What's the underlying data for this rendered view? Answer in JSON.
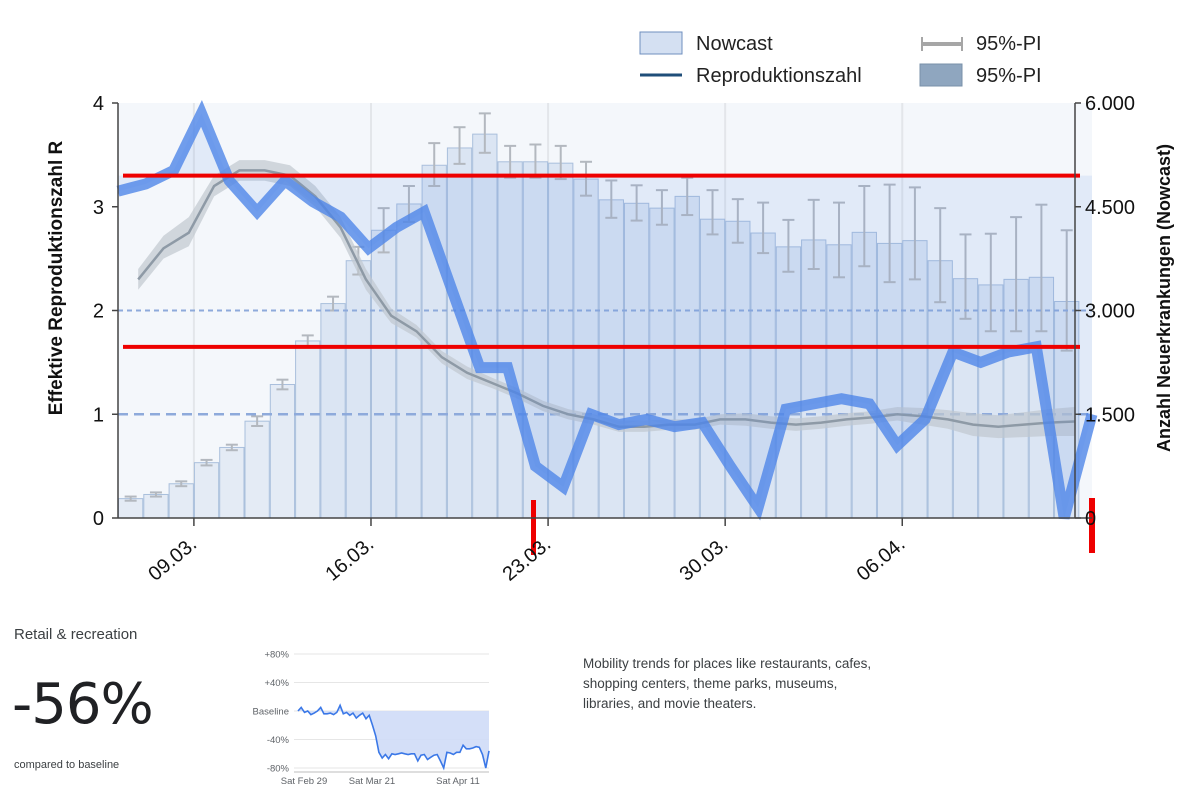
{
  "chart_data": [
    {
      "type": "bar+line",
      "legend": [
        {
          "label": "Nowcast",
          "kind": "bar-swatch",
          "color": "#d4e0f2"
        },
        {
          "label": "Reproduktionszahl",
          "kind": "line",
          "color": "#1f4e79"
        },
        {
          "label": "95%-PI",
          "kind": "errorbar",
          "color": "#a6a6a6"
        },
        {
          "label": "95%-PI",
          "kind": "band-swatch",
          "color": "#8fa6bf"
        }
      ],
      "ylabel_left": "Effektive Reproduktionszahl R",
      "ylabel_right": "Anzahl Neuerkrankungen (Nowcast)",
      "y_left_range": [
        0,
        4
      ],
      "y_left_ticks": [
        "0",
        "1",
        "2",
        "3",
        "4"
      ],
      "y_right_range": [
        0,
        6000
      ],
      "y_right_ticks": [
        "0",
        "1.500",
        "3.000",
        "4.500",
        "6.000"
      ],
      "x_tick_labels": [
        "09.03.",
        "16.03.",
        "23.03.",
        "30.03.",
        "06.04."
      ],
      "nowcast": [
        280,
        340,
        495,
        800,
        1020,
        1400,
        1930,
        2560,
        3100,
        3720,
        4160,
        4540,
        5100,
        5350,
        5550,
        5150,
        5150,
        5130,
        4900,
        4600,
        4550,
        4480,
        4650,
        4320,
        4290,
        4120,
        3920,
        4020,
        3950,
        4130,
        3970,
        4010,
        3720,
        3460,
        3370,
        3450,
        3480,
        3130
      ],
      "nowcast_pi_high": [
        310,
        370,
        530,
        840,
        1060,
        1470,
        2000,
        2640,
        3200,
        3920,
        4480,
        4800,
        5420,
        5650,
        5850,
        5380,
        5400,
        5380,
        5150,
        4880,
        4810,
        4740,
        4920,
        4740,
        4610,
        4560,
        4310,
        4600,
        4560,
        4800,
        4820,
        4780,
        4480,
        4100,
        4110,
        4350,
        4530,
        4160
      ],
      "nowcast_pi_low": [
        250,
        310,
        460,
        760,
        980,
        1330,
        1860,
        2480,
        3000,
        3520,
        3840,
        4280,
        4800,
        5120,
        5280,
        4920,
        4920,
        4900,
        4660,
        4340,
        4300,
        4240,
        4380,
        4100,
        3980,
        3830,
        3560,
        3600,
        3480,
        3640,
        3410,
        3450,
        3120,
        2880,
        2700,
        2700,
        2700,
        2420
      ],
      "reproduktionszahl": [
        2.3,
        2.6,
        2.75,
        3.2,
        3.35,
        3.35,
        3.3,
        3.1,
        2.8,
        2.3,
        1.95,
        1.8,
        1.55,
        1.4,
        1.3,
        1.2,
        1.08,
        1.0,
        0.95,
        0.88,
        0.88,
        0.9,
        0.9,
        0.95,
        0.95,
        0.92,
        0.9,
        0.92,
        0.95,
        0.97,
        1.0,
        0.98,
        0.95,
        0.9,
        0.88,
        0.9,
        0.92,
        0.93
      ],
      "r_pi_high": [
        2.4,
        2.72,
        2.9,
        3.3,
        3.45,
        3.45,
        3.4,
        3.2,
        2.9,
        2.4,
        2.02,
        1.86,
        1.61,
        1.46,
        1.35,
        1.25,
        1.13,
        1.05,
        1.0,
        0.94,
        0.94,
        0.95,
        0.95,
        1.0,
        1.01,
        0.98,
        0.96,
        0.98,
        1.01,
        1.03,
        1.07,
        1.06,
        1.04,
        1.01,
        0.99,
        1.02,
        1.05,
        1.07
      ],
      "r_pi_low": [
        2.2,
        2.5,
        2.62,
        3.1,
        3.25,
        3.25,
        3.2,
        3.0,
        2.7,
        2.2,
        1.88,
        1.74,
        1.49,
        1.34,
        1.25,
        1.15,
        1.03,
        0.95,
        0.9,
        0.83,
        0.83,
        0.85,
        0.85,
        0.9,
        0.89,
        0.86,
        0.84,
        0.86,
        0.89,
        0.91,
        0.94,
        0.9,
        0.86,
        0.79,
        0.77,
        0.78,
        0.79,
        0.79
      ],
      "overlay_trend_R": [
        3.15,
        3.22,
        3.35,
        3.9,
        3.25,
        2.95,
        3.25,
        3.05,
        2.9,
        2.6,
        2.8,
        2.95,
        2.2,
        1.45,
        1.45,
        0.5,
        0.3,
        1.0,
        0.9,
        0.95,
        0.88,
        0.92,
        0.5,
        0.1,
        1.05,
        1.1,
        1.15,
        1.1,
        0.7,
        0.95,
        1.6,
        1.5,
        1.6,
        1.65,
        0.0,
        1.0
      ],
      "reference_lines_R": [
        1,
        2
      ],
      "highlight_lines_R": [
        3.3,
        1.65
      ]
    },
    {
      "type": "line",
      "title": "Retail & recreation",
      "y_ticks": [
        "+80%",
        "+40%",
        "Baseline",
        "-40%",
        "-80%"
      ],
      "y_range": [
        -80,
        80
      ],
      "x_tick_labels": [
        "Sat Feb 29",
        "Sat Mar 21",
        "Sat Apr 11"
      ],
      "values": [
        0,
        5,
        -2,
        0,
        -5,
        -3,
        0,
        5,
        -4,
        -4,
        -3,
        -5,
        -2,
        8,
        -4,
        -2,
        -6,
        -3,
        -10,
        -6,
        -3,
        -11,
        -6,
        -20,
        -35,
        -58,
        -66,
        -61,
        -67,
        -60,
        -61,
        -60,
        -59,
        -60,
        -61,
        -60,
        -60,
        -70,
        -62,
        -61,
        -68,
        -65,
        -62,
        -61,
        -70,
        -80,
        -58,
        -59,
        -61,
        -58,
        -58,
        -48,
        -53,
        -53,
        -52,
        -50,
        -51,
        -61,
        -80,
        -56
      ]
    }
  ],
  "retail": {
    "title": "Retail & recreation",
    "value": "-56%",
    "subtitle": "compared to baseline",
    "description": "Mobility trends for places like restaurants, cafes, shopping centers, theme parks, museums, libraries, and movie theaters."
  },
  "colors": {
    "bar_fill": "#dbe5f3",
    "bar_stroke": "#a9bfdc",
    "r_line": "#8e9aa6",
    "r_band": "#c0c7ce",
    "overlay_line": "#4f86e8",
    "highlight": "#ee0000",
    "mini_line": "#3b78e7",
    "mini_fill": "#cfdcf7"
  }
}
